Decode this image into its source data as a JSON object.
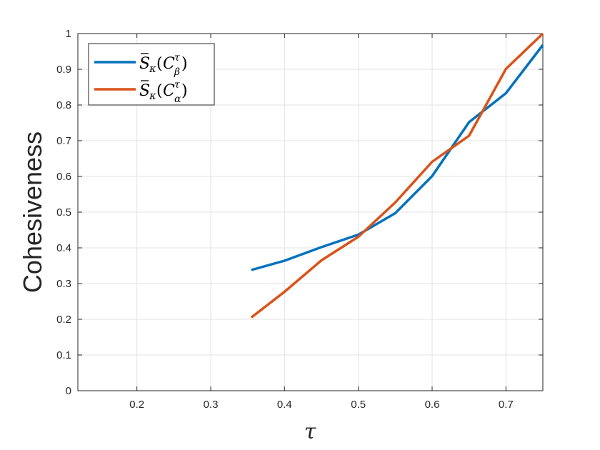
{
  "chart_data": {
    "type": "line",
    "xlabel": "τ",
    "ylabel": "Cohesiveness",
    "xlim": [
      0.12,
      0.75
    ],
    "ylim": [
      0,
      1
    ],
    "x_ticks": [
      0.2,
      0.3,
      0.4,
      0.5,
      0.6,
      0.7
    ],
    "x_tick_labels": [
      "0.2",
      "0.3",
      "0.4",
      "0.5",
      "0.6",
      "0.7"
    ],
    "y_ticks": [
      0,
      0.1,
      0.2,
      0.3,
      0.4,
      0.5,
      0.6,
      0.7,
      0.8,
      0.9,
      1
    ],
    "y_tick_labels": [
      "0",
      "0.1",
      "0.2",
      "0.3",
      "0.4",
      "0.5",
      "0.6",
      "0.7",
      "0.8",
      "0.9",
      "1"
    ],
    "grid": true,
    "legend_position": "top-left",
    "series": [
      {
        "name": "S̄κ(Cβτ)",
        "color": "#0072BD",
        "x": [
          0.355,
          0.4,
          0.45,
          0.5,
          0.55,
          0.6,
          0.65,
          0.7,
          0.75
        ],
        "y": [
          0.338,
          0.364,
          0.402,
          0.437,
          0.497,
          0.601,
          0.752,
          0.833,
          0.968
        ]
      },
      {
        "name": "S̄κ(Cατ)",
        "color": "#D95319",
        "x": [
          0.355,
          0.4,
          0.45,
          0.5,
          0.55,
          0.6,
          0.65,
          0.7,
          0.75
        ],
        "y": [
          0.205,
          0.277,
          0.365,
          0.431,
          0.527,
          0.641,
          0.714,
          0.901,
          1.0
        ]
      }
    ]
  }
}
